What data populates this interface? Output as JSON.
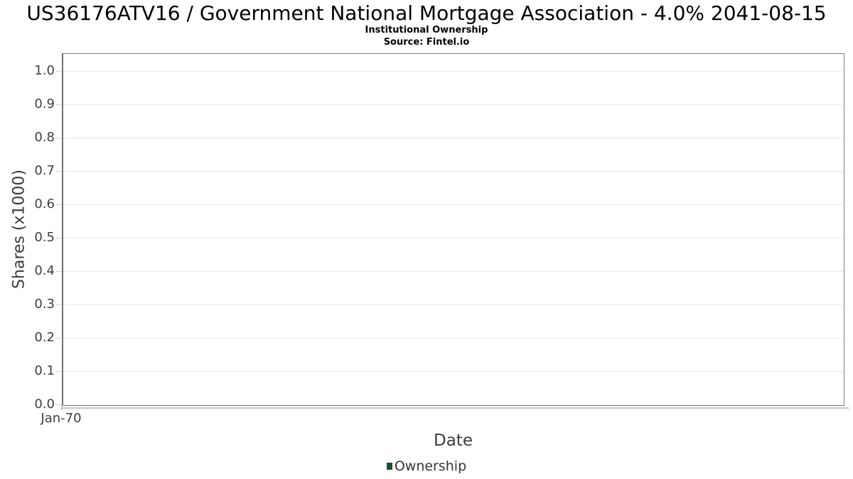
{
  "chart_data": {
    "type": "line",
    "title": "US36176ATV16 / Government National Mortgage Association - 4.0% 2041-08-15",
    "subtitle": "Institutional Ownership",
    "source": "Source: Fintel.io",
    "xlabel": "Date",
    "ylabel": "Shares (x1000)",
    "x_tick_labels": [
      "Jan-70"
    ],
    "y_tick_labels": [
      "0.0",
      "0.1",
      "0.2",
      "0.3",
      "0.4",
      "0.5",
      "0.6",
      "0.7",
      "0.8",
      "0.9",
      "1.0"
    ],
    "ylim": [
      0.0,
      1.05
    ],
    "grid": true,
    "legend_position": "bottom-center",
    "series": [
      {
        "name": "Ownership",
        "color": "#1e4d2b",
        "values": []
      }
    ]
  },
  "colors": {
    "plot_border": "#7f7f7f",
    "gridline": "#e8e8e8",
    "axis_line": "#c8c8c8",
    "tick_mark": "#cfcfcf",
    "tick_text": "#3f3f3f",
    "axis_title_text": "#3c3c3c",
    "title_text": "#000000",
    "legend_marker": "#1e4d2b"
  }
}
